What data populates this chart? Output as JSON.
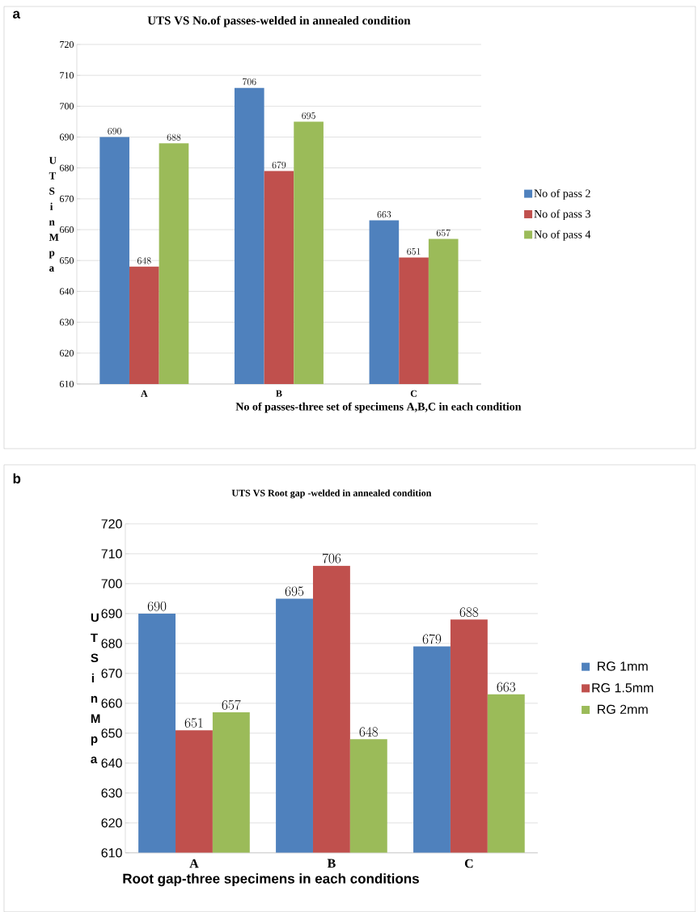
{
  "chart_data": [
    {
      "type": "bar",
      "title": "UTS VS No.of passes-welded in annealed condition",
      "xlabel": "No of passes-three set of specimens A,B,C in each condition",
      "ylabel": "U T S i n M p a",
      "annotations": [
        "a"
      ],
      "categories": [
        "A",
        "B",
        "C"
      ],
      "series": [
        {
          "name": "No of pass 2",
          "color": "#4f81bd",
          "values": [
            690,
            706,
            663
          ]
        },
        {
          "name": "No of pass 3",
          "color": "#c0504d",
          "values": [
            648,
            679,
            651
          ]
        },
        {
          "name": "No of pass 4",
          "color": "#9bbb59",
          "values": [
            688,
            695,
            657
          ]
        }
      ],
      "ylim": [
        610,
        720
      ],
      "yticks": [
        610,
        620,
        630,
        640,
        650,
        660,
        670,
        680,
        690,
        700,
        710,
        720
      ],
      "grid": "y",
      "legend": "right",
      "data_labels": true
    },
    {
      "type": "bar",
      "title": "UTS VS Root  gap -welded in annealed condition",
      "xlabel": "Root gap-three specimens in each conditions",
      "ylabel": "U T S i n M p a",
      "annotations": [
        "b"
      ],
      "categories": [
        "A",
        "B",
        "C"
      ],
      "series": [
        {
          "name": "RG 1mm",
          "color": "#4f81bd",
          "values": [
            690,
            695,
            679
          ]
        },
        {
          "name": "RG 1.5mm",
          "color": "#c0504d",
          "values": [
            651,
            706,
            688
          ]
        },
        {
          "name": "RG 2mm",
          "color": "#9bbb59",
          "values": [
            657,
            648,
            663
          ]
        }
      ],
      "ylim": [
        610,
        720
      ],
      "yticks": [
        610,
        620,
        630,
        640,
        650,
        660,
        670,
        680,
        690,
        700,
        710,
        720
      ],
      "grid": "y",
      "legend": "right",
      "data_labels": true
    }
  ]
}
